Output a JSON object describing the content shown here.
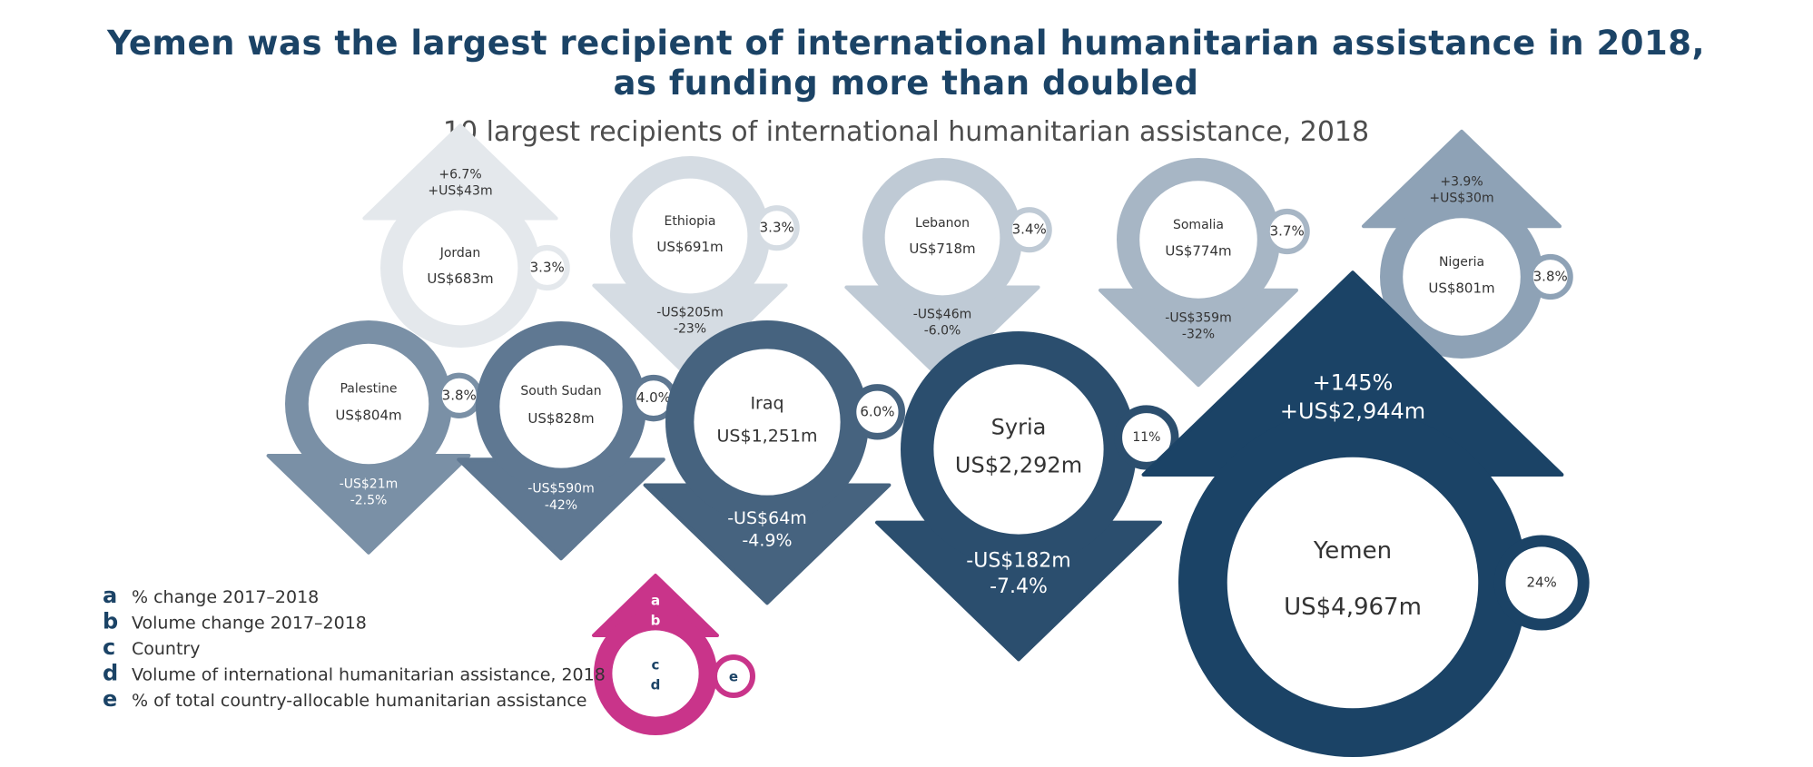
{
  "chart_data": {
    "type": "bubble-arrows",
    "title_line1": "Yemen was the largest recipient of international humanitarian assistance in 2018,",
    "title_line2": "as funding more than doubled",
    "subtitle": "10 largest recipients of international humanitarian assistance, 2018",
    "countries": [
      {
        "country": "Jordan",
        "volume": "US$683m",
        "volume_musd": 683,
        "pct_change": "+6.7%",
        "volume_change": "+US$43m",
        "direction": "up",
        "share": "3.3%",
        "color": "#e4e8ec"
      },
      {
        "country": "Ethiopia",
        "volume": "US$691m",
        "volume_musd": 691,
        "pct_change": "-23%",
        "volume_change": "-US$205m",
        "direction": "down",
        "share": "3.3%",
        "color": "#d5dce3"
      },
      {
        "country": "Lebanon",
        "volume": "US$718m",
        "volume_musd": 718,
        "pct_change": "-6.0%",
        "volume_change": "-US$46m",
        "direction": "down",
        "share": "3.4%",
        "color": "#bfcad5"
      },
      {
        "country": "Somalia",
        "volume": "US$774m",
        "volume_musd": 774,
        "pct_change": "-32%",
        "volume_change": "-US$359m",
        "direction": "down",
        "share": "3.7%",
        "color": "#a7b6c5"
      },
      {
        "country": "Nigeria",
        "volume": "US$801m",
        "volume_musd": 801,
        "pct_change": "+3.9%",
        "volume_change": "+US$30m",
        "direction": "up",
        "share": "3.8%",
        "color": "#8ea2b6"
      },
      {
        "country": "Palestine",
        "volume": "US$804m",
        "volume_musd": 804,
        "pct_change": "-2.5%",
        "volume_change": "-US$21m",
        "direction": "down",
        "share": "3.8%",
        "color": "#7a90a6"
      },
      {
        "country": "South Sudan",
        "volume": "US$828m",
        "volume_musd": 828,
        "pct_change": "-42%",
        "volume_change": "-US$590m",
        "direction": "down",
        "share": "4.0%",
        "color": "#5f7892"
      },
      {
        "country": "Iraq",
        "volume": "US$1,251m",
        "volume_musd": 1251,
        "pct_change": "-4.9%",
        "volume_change": "-US$64m",
        "direction": "down",
        "share": "6.0%",
        "color": "#46637f"
      },
      {
        "country": "Syria",
        "volume": "US$2,292m",
        "volume_musd": 2292,
        "pct_change": "-7.4%",
        "volume_change": "-US$182m",
        "direction": "down",
        "share": "11%",
        "color": "#2b4e6e"
      },
      {
        "country": "Yemen",
        "volume": "US$4,967m",
        "volume_musd": 4967,
        "pct_change": "+145%",
        "volume_change": "+US$2,944m",
        "direction": "up",
        "share": "24%",
        "color": "#1b4366"
      }
    ],
    "legend": {
      "items": [
        {
          "key": "a",
          "text": "% change 2017–2018"
        },
        {
          "key": "b",
          "text": "Volume change 2017–2018"
        },
        {
          "key": "c",
          "text": "Country"
        },
        {
          "key": "d",
          "text": "Volume of international humanitarian assistance, 2018"
        },
        {
          "key": "e",
          "text": "% of total country-allocable humanitarian assistance"
        }
      ],
      "sample_color": "#c9348a",
      "sample_text_color": "#1b4366"
    }
  }
}
